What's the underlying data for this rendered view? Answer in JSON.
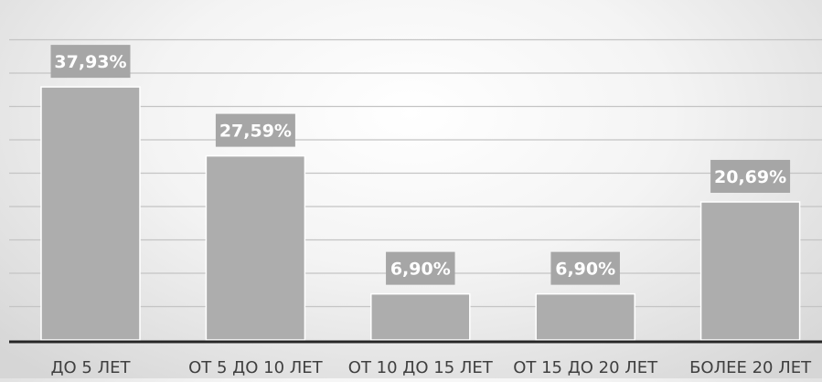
{
  "chart_data": {
    "type": "bar",
    "title": "",
    "xlabel": "",
    "ylabel": "",
    "categories": [
      "ДО 5 ЛЕТ",
      "ОТ 5 ДО 10 ЛЕТ",
      "ОТ 10 ДО 15 ЛЕТ",
      "ОТ 15 ДО 20 ЛЕТ",
      "БОЛЕЕ 20 ЛЕТ"
    ],
    "values": [
      37.93,
      27.59,
      6.9,
      6.9,
      20.69
    ],
    "data_labels": [
      "37,93%",
      "27,59%",
      "6,90%",
      "6,90%",
      "20,69%"
    ],
    "ylim": [
      0,
      45
    ],
    "y_tick_step": 5,
    "grid": true,
    "legend": "none",
    "colors": {
      "bar": "#adadad",
      "bar_edge": "#ffffff",
      "label_box": "#a6a6a6",
      "label_text": "#ffffff",
      "grid": "#c4c4c4",
      "axis": "#262626",
      "category_text": "#404040"
    }
  }
}
